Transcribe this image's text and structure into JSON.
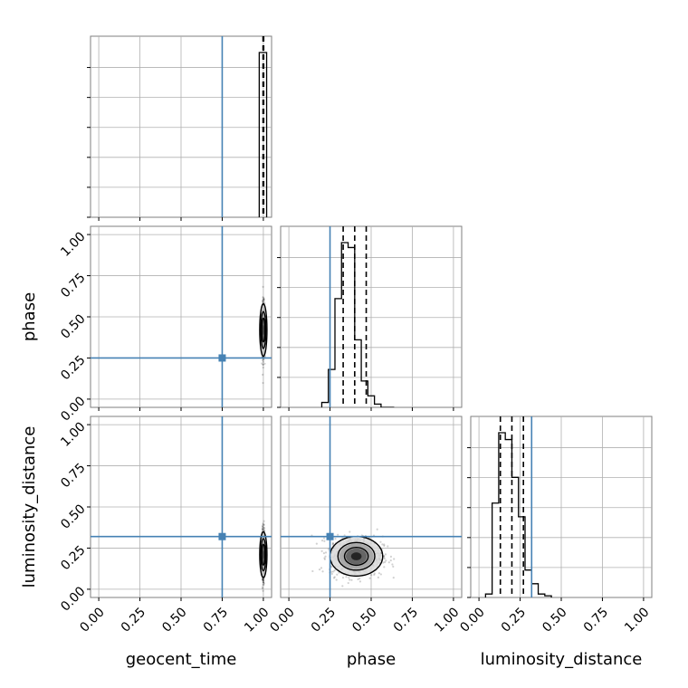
{
  "chart_data": {
    "type": "corner",
    "parameters": [
      "geocent_time",
      "phase",
      "luminosity_distance"
    ],
    "axis_range": [
      -0.05,
      1.05
    ],
    "ticks": [
      0,
      0.25,
      0.5,
      0.75,
      1
    ],
    "tick_labels": [
      "0.00",
      "0.25",
      "0.50",
      "0.75",
      "1.00"
    ],
    "truths": {
      "geocent_time": 0.75,
      "phase": 0.25,
      "luminosity_distance": 0.32
    },
    "grid": true,
    "histograms": {
      "geocent_time": {
        "bins": [
          0.975,
          0.99,
          1.005,
          1.02
        ],
        "counts": [
          1.0,
          1.0,
          1.0
        ],
        "quantiles": [
          0.998,
          1.0,
          1.002
        ]
      },
      "phase": {
        "bins": [
          0.2,
          0.24,
          0.28,
          0.32,
          0.36,
          0.4,
          0.44,
          0.48,
          0.52,
          0.56,
          0.6,
          0.64
        ],
        "counts": [
          0.03,
          0.23,
          0.66,
          1.0,
          0.97,
          0.41,
          0.16,
          0.07,
          0.02,
          0.0,
          0.0
        ],
        "quantiles": [
          0.33,
          0.4,
          0.47
        ]
      },
      "luminosity_distance": {
        "bins": [
          0.04,
          0.08,
          0.12,
          0.16,
          0.2,
          0.24,
          0.28,
          0.32,
          0.36,
          0.4,
          0.44
        ],
        "counts": [
          0.02,
          0.55,
          0.96,
          0.92,
          0.7,
          0.47,
          0.16,
          0.08,
          0.02,
          0.01
        ],
        "quantiles": [
          0.13,
          0.2,
          0.27
        ]
      }
    },
    "scatter_2d": {
      "phase_vs_geocent_time": {
        "center": [
          1.0,
          0.42
        ],
        "spread": [
          0.004,
          0.08
        ]
      },
      "luminosity_distance_vs_geocent_time": {
        "center": [
          1.0,
          0.21
        ],
        "spread": [
          0.004,
          0.07
        ]
      },
      "luminosity_distance_vs_phase": {
        "center": [
          0.41,
          0.2
        ],
        "spread": [
          0.08,
          0.06
        ]
      }
    }
  }
}
